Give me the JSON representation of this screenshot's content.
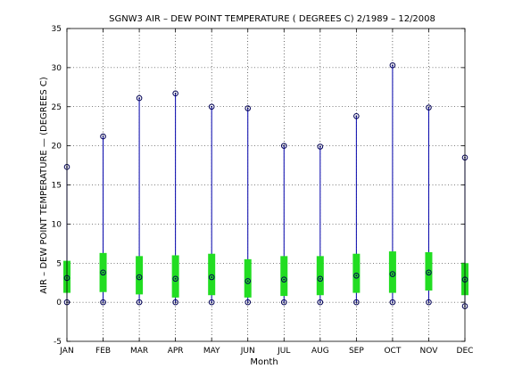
{
  "chart_data": {
    "type": "box",
    "title": "SGNW3  AIR – DEW POINT TEMPERATURE ( DEGREES C) 2/1989 – 12/2008",
    "xlabel": "Month",
    "ylabel": "AIR – DEW POINT TEMPERATURE  —  (DEGREES C)",
    "categories": [
      "JAN",
      "FEB",
      "MAR",
      "APR",
      "MAY",
      "JUN",
      "JUL",
      "AUG",
      "SEP",
      "OCT",
      "NOV",
      "DEC"
    ],
    "ylim": [
      -5,
      35
    ],
    "yticks": [
      -5,
      0,
      5,
      10,
      15,
      20,
      25,
      30,
      35
    ],
    "grid": true,
    "max": [
      17.3,
      21.2,
      26.1,
      26.7,
      25.0,
      24.8,
      20.0,
      19.9,
      23.8,
      30.3,
      24.9,
      18.5
    ],
    "min": [
      0.0,
      0.0,
      0.0,
      0.0,
      0.0,
      0.0,
      0.0,
      0.0,
      0.0,
      0.0,
      0.0,
      -0.5
    ],
    "median": [
      3.1,
      3.8,
      3.2,
      3.0,
      3.2,
      2.7,
      2.9,
      3.0,
      3.4,
      3.6,
      3.8,
      2.9
    ],
    "q1": [
      1.2,
      1.3,
      1.0,
      0.6,
      0.9,
      0.6,
      0.8,
      0.9,
      1.2,
      1.2,
      1.5,
      0.9
    ],
    "q3": [
      5.3,
      6.3,
      5.9,
      6.0,
      6.2,
      5.5,
      5.9,
      5.9,
      6.2,
      6.5,
      6.4,
      5.0
    ],
    "colors": {
      "whisker": "#0000aa",
      "box": "#22dd22",
      "marker": "#000055",
      "axes": "#000000"
    }
  }
}
